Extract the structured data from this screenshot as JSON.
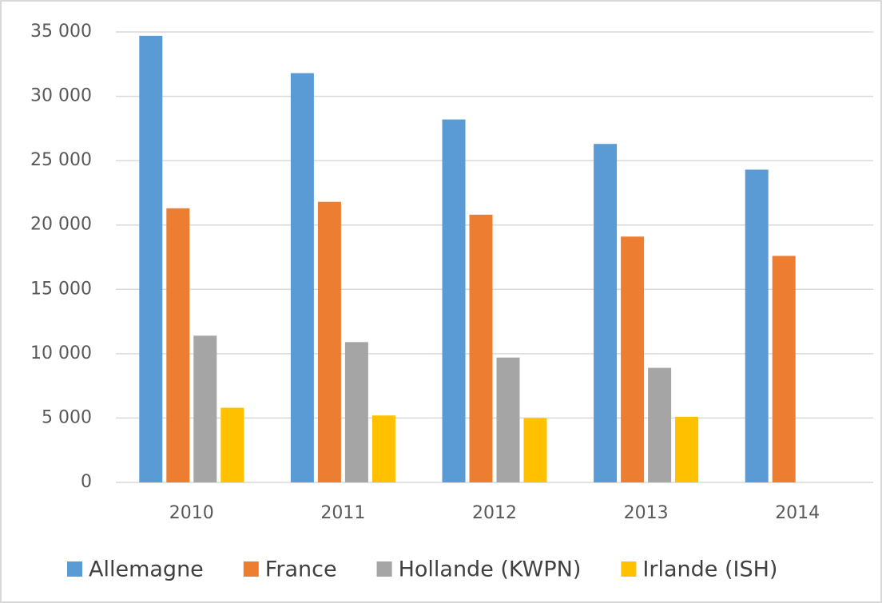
{
  "chart_data": {
    "type": "bar",
    "categories": [
      "2010",
      "2011",
      "2012",
      "2013",
      "2014"
    ],
    "series": [
      {
        "name": "Allemagne",
        "color": "#5b9bd5",
        "values": [
          34700,
          31800,
          28200,
          26300,
          24300
        ]
      },
      {
        "name": "France",
        "color": "#ed7d31",
        "values": [
          21300,
          21800,
          20800,
          19100,
          17600
        ]
      },
      {
        "name": "Hollande (KWPN)",
        "color": "#a5a5a5",
        "values": [
          11400,
          10900,
          9700,
          8900,
          null
        ]
      },
      {
        "name": "Irlande (ISH)",
        "color": "#ffc000",
        "values": [
          5800,
          5200,
          5000,
          5100,
          null
        ]
      }
    ],
    "ylim": [
      0,
      35000
    ],
    "yticks": [
      0,
      {
        "value": 5000,
        "label": "5 000"
      },
      {
        "value": 10000,
        "label": "10 000"
      },
      {
        "value": 15000,
        "label": "15 000"
      },
      {
        "value": 20000,
        "label": "20 000"
      },
      {
        "value": 25000,
        "label": "25 000"
      },
      {
        "value": 30000,
        "label": "30 000"
      },
      {
        "value": 35000,
        "label": "35 000"
      }
    ],
    "grid": true,
    "legend": "bottom"
  }
}
